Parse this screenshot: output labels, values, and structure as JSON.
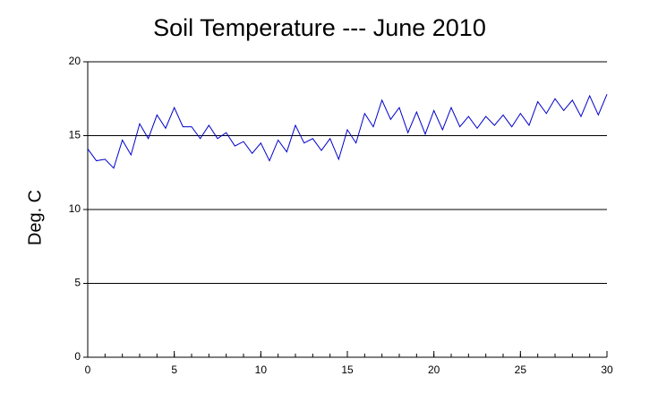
{
  "chart_data": {
    "type": "line",
    "title": "Soil Temperature --- June 2010",
    "ylabel": "Deg. C",
    "x": [
      0,
      0.5,
      1,
      1.5,
      2,
      2.5,
      3,
      3.5,
      4,
      4.5,
      5,
      5.5,
      6,
      6.5,
      7,
      7.5,
      8,
      8.5,
      9,
      9.5,
      10,
      10.5,
      11,
      11.5,
      12,
      12.5,
      13,
      13.5,
      14,
      14.5,
      15,
      15.5,
      16,
      16.5,
      17,
      17.5,
      18,
      18.5,
      19,
      19.5,
      20,
      20.5,
      21,
      21.5,
      22,
      22.5,
      23,
      23.5,
      24,
      24.5,
      25,
      25.5,
      26,
      26.5,
      27,
      27.5,
      28,
      28.5,
      29,
      29.5,
      30
    ],
    "series": [
      {
        "name": "Soil Temperature",
        "color": "#0000cc",
        "values": [
          14.1,
          13.3,
          13.4,
          12.8,
          14.7,
          13.7,
          15.8,
          14.8,
          16.4,
          15.5,
          16.9,
          15.6,
          15.6,
          14.8,
          15.7,
          14.8,
          15.2,
          14.3,
          14.6,
          13.8,
          14.5,
          13.3,
          14.7,
          13.9,
          15.7,
          14.5,
          14.8,
          14.0,
          14.8,
          13.4,
          15.4,
          14.5,
          16.5,
          15.6,
          17.4,
          16.1,
          16.9,
          15.2,
          16.6,
          15.1,
          16.7,
          15.4,
          16.9,
          15.6,
          16.3,
          15.5,
          16.3,
          15.7,
          16.4,
          15.6,
          16.5,
          15.7,
          17.3,
          16.5,
          17.5,
          16.7,
          17.4,
          16.3,
          17.7,
          16.4,
          17.8
        ]
      }
    ],
    "xlim": [
      0,
      30
    ],
    "xticks": [
      0,
      5,
      10,
      15,
      20,
      25,
      30
    ],
    "xminorticks": [
      0,
      1,
      2,
      3,
      4,
      5,
      6,
      7,
      8,
      9,
      10,
      11,
      12,
      13,
      14,
      15,
      16,
      17,
      18,
      19,
      20,
      21,
      22,
      23,
      24,
      25,
      26,
      27,
      28,
      29,
      30
    ],
    "ylim": [
      0,
      20
    ],
    "yticks": [
      0,
      5,
      10,
      15,
      20
    ],
    "grid": true
  }
}
